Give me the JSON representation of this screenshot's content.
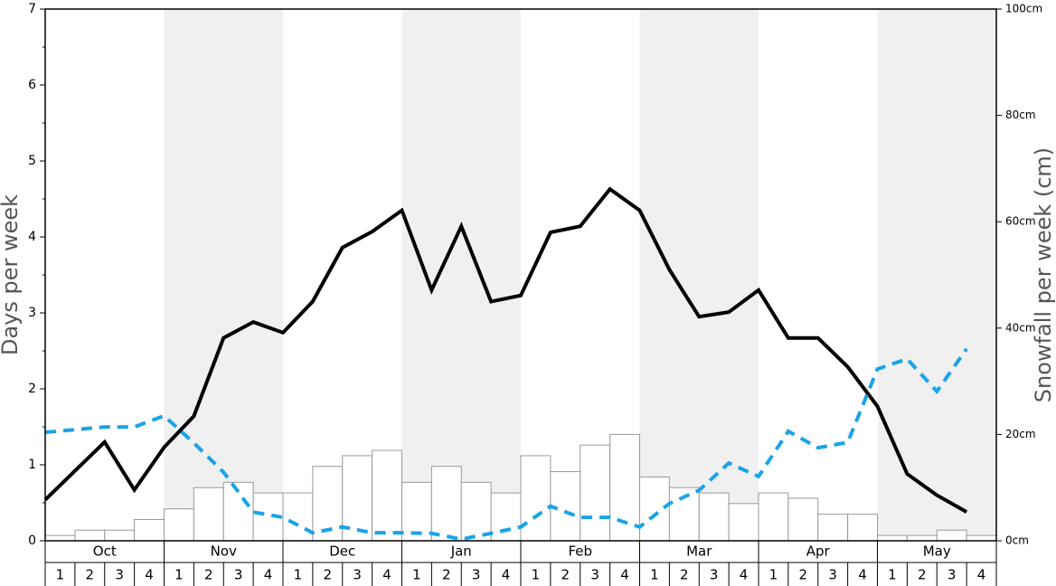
{
  "chart_data": {
    "type": "combo",
    "months": [
      "Oct",
      "Nov",
      "Dec",
      "Jan",
      "Feb",
      "Mar",
      "Apr",
      "May"
    ],
    "weeks": [
      "1",
      "2",
      "3",
      "4"
    ],
    "shaded_months": [
      1,
      3,
      5,
      7
    ],
    "ylabel": "Days per week",
    "y2label": "Snowfall per week (cm)",
    "ylim": [
      0,
      7
    ],
    "yticks": [
      0,
      1,
      2,
      3,
      4,
      5,
      6,
      7
    ],
    "y2lim": [
      0,
      100
    ],
    "y2ticks": [
      {
        "value": 0,
        "label": "0cm"
      },
      {
        "value": 20,
        "label": "20cm"
      },
      {
        "value": 40,
        "label": "40cm"
      },
      {
        "value": 60,
        "label": "60cm"
      },
      {
        "value": 80,
        "label": "80cm"
      },
      {
        "value": 100,
        "label": "100cm"
      }
    ],
    "series": [
      {
        "type": "bar",
        "axis": "y2",
        "color": "#ffffff",
        "values": [
          1,
          2,
          2,
          4,
          6,
          10,
          11,
          9,
          9,
          14,
          16,
          17,
          11,
          14,
          11,
          9,
          16,
          13,
          18,
          20,
          12,
          10,
          9,
          7,
          9,
          8,
          5,
          5,
          1,
          1,
          2,
          1
        ]
      },
      {
        "type": "line",
        "color": "#000000",
        "values": [
          0.54,
          0.92,
          1.3,
          0.67,
          1.23,
          1.64,
          2.67,
          2.88,
          2.74,
          3.15,
          3.86,
          4.07,
          4.35,
          3.3,
          4.14,
          3.15,
          3.23,
          4.06,
          4.14,
          4.63,
          4.35,
          3.57,
          2.95,
          3.01,
          3.3,
          2.67,
          2.67,
          2.29,
          1.77,
          0.88,
          0.6,
          0.38
        ]
      },
      {
        "type": "line",
        "axis": "y2",
        "color": "#1aa3e8",
        "dashed": true,
        "values": [
          20.4,
          20.9,
          21.4,
          21.4,
          23.5,
          18.4,
          12.9,
          5.4,
          4.4,
          1.5,
          2.6,
          1.5,
          1.5,
          1.4,
          0.3,
          1.4,
          2.6,
          6.5,
          4.4,
          4.4,
          2.6,
          7,
          9.5,
          14.6,
          12.1,
          20.6,
          17.5,
          18.5,
          32.3,
          34.2,
          28.1,
          36.1
        ]
      }
    ]
  }
}
